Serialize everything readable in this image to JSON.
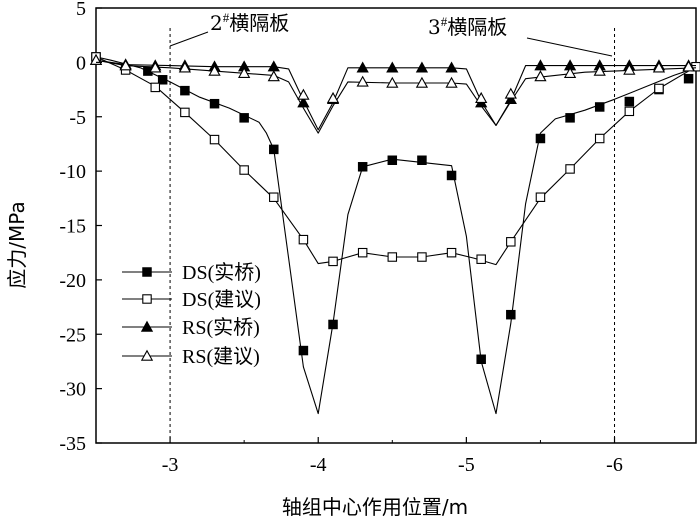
{
  "chart_data": {
    "type": "line",
    "xlabel": "轴组中心作用位置/m",
    "ylabel": "应力/MPa",
    "xlim": [
      -2.5,
      -6.55
    ],
    "ylim": [
      -35,
      5
    ],
    "xticks": [
      {
        "value": -3,
        "label": "-3"
      },
      {
        "value": -4,
        "label": "-4"
      },
      {
        "value": -5,
        "label": "-5"
      },
      {
        "value": -6,
        "label": "-6"
      }
    ],
    "yticks": [
      {
        "value": 5,
        "label": "5"
      },
      {
        "value": 0,
        "label": "0"
      },
      {
        "value": -5,
        "label": "-5"
      },
      {
        "value": -10,
        "label": "-10"
      },
      {
        "value": -15,
        "label": "-15"
      },
      {
        "value": -20,
        "label": "-20"
      },
      {
        "value": -25,
        "label": "-25"
      },
      {
        "value": -30,
        "label": "-30"
      },
      {
        "value": -35,
        "label": "-35"
      }
    ],
    "grid": false,
    "legend_position": "left-bottom",
    "series": [
      {
        "name": "DS(实桥)",
        "marker": "square-filled",
        "curve": [
          [
            -2.5,
            0.5
          ],
          [
            -2.6,
            0.2
          ],
          [
            -2.8,
            -0.5
          ],
          [
            -3.0,
            -1.8
          ],
          [
            -3.2,
            -3.2
          ],
          [
            -3.4,
            -4.2
          ],
          [
            -3.6,
            -5.5
          ],
          [
            -3.65,
            -6.5
          ],
          [
            -3.7,
            -8
          ],
          [
            -3.8,
            -18
          ],
          [
            -3.9,
            -28
          ],
          [
            -4.0,
            -32.3
          ],
          [
            -4.1,
            -24
          ],
          [
            -4.2,
            -14
          ],
          [
            -4.3,
            -9.6
          ],
          [
            -4.5,
            -8.9
          ],
          [
            -4.9,
            -9.5
          ],
          [
            -5.0,
            -16
          ],
          [
            -5.1,
            -27.5
          ],
          [
            -5.2,
            -32.3
          ],
          [
            -5.3,
            -24
          ],
          [
            -5.4,
            -13
          ],
          [
            -5.5,
            -6.5
          ],
          [
            -5.6,
            -5.2
          ],
          [
            -5.8,
            -4.4
          ],
          [
            -6.0,
            -3.4
          ],
          [
            -6.2,
            -2.3
          ],
          [
            -6.4,
            -1.2
          ],
          [
            -6.55,
            -0.5
          ]
        ],
        "markers": [
          [
            -2.5,
            0.5
          ],
          [
            -2.85,
            -0.8
          ],
          [
            -2.95,
            -1.6
          ],
          [
            -3.1,
            -2.6
          ],
          [
            -3.3,
            -3.8
          ],
          [
            -3.5,
            -5.1
          ],
          [
            -3.7,
            -8.0
          ],
          [
            -3.9,
            -26.5
          ],
          [
            -4.1,
            -24.1
          ],
          [
            -4.3,
            -9.6
          ],
          [
            -4.5,
            -9.0
          ],
          [
            -4.7,
            -9.0
          ],
          [
            -4.9,
            -10.4
          ],
          [
            -5.1,
            -27.3
          ],
          [
            -5.3,
            -23.2
          ],
          [
            -5.5,
            -7.0
          ],
          [
            -5.7,
            -5.1
          ],
          [
            -5.9,
            -4.1
          ],
          [
            -6.1,
            -3.6
          ],
          [
            -6.3,
            -2.5
          ],
          [
            -6.5,
            -1.5
          ]
        ]
      },
      {
        "name": "DS(建议)",
        "marker": "square-open",
        "curve": [
          [
            -2.5,
            0.5
          ],
          [
            -2.7,
            -0.7
          ],
          [
            -2.9,
            -2.2
          ],
          [
            -3.1,
            -4.6
          ],
          [
            -3.3,
            -7.1
          ],
          [
            -3.5,
            -9.9
          ],
          [
            -3.7,
            -12.5
          ],
          [
            -3.9,
            -16.3
          ],
          [
            -4.0,
            -18.5
          ],
          [
            -4.1,
            -18.3
          ],
          [
            -4.3,
            -17.5
          ],
          [
            -4.5,
            -17.9
          ],
          [
            -4.7,
            -17.9
          ],
          [
            -4.9,
            -17.5
          ],
          [
            -5.05,
            -18.0
          ],
          [
            -5.2,
            -18.6
          ],
          [
            -5.3,
            -16.5
          ],
          [
            -5.5,
            -12.5
          ],
          [
            -5.7,
            -9.8
          ],
          [
            -5.9,
            -7.0
          ],
          [
            -6.1,
            -4.5
          ],
          [
            -6.3,
            -2.4
          ],
          [
            -6.55,
            -0.4
          ]
        ],
        "markers": [
          [
            -2.5,
            0.5
          ],
          [
            -2.7,
            -0.7
          ],
          [
            -2.9,
            -2.3
          ],
          [
            -3.1,
            -4.6
          ],
          [
            -3.3,
            -7.1
          ],
          [
            -3.5,
            -9.9
          ],
          [
            -3.7,
            -12.4
          ],
          [
            -3.9,
            -16.3
          ],
          [
            -4.1,
            -18.3
          ],
          [
            -4.3,
            -17.5
          ],
          [
            -4.5,
            -17.9
          ],
          [
            -4.7,
            -17.9
          ],
          [
            -4.9,
            -17.5
          ],
          [
            -5.1,
            -18.1
          ],
          [
            -5.3,
            -16.5
          ],
          [
            -5.5,
            -12.4
          ],
          [
            -5.7,
            -9.8
          ],
          [
            -5.9,
            -7.0
          ],
          [
            -6.1,
            -4.5
          ],
          [
            -6.3,
            -2.4
          ],
          [
            -6.55,
            -0.4
          ]
        ]
      },
      {
        "name": "RS(实桥)",
        "marker": "triangle-filled",
        "curve": [
          [
            -2.5,
            0.2
          ],
          [
            -2.7,
            -0.2
          ],
          [
            -3.0,
            -0.3
          ],
          [
            -3.3,
            -0.4
          ],
          [
            -3.7,
            -0.4
          ],
          [
            -3.8,
            -0.6
          ],
          [
            -3.9,
            -3.5
          ],
          [
            -4.0,
            -6.2
          ],
          [
            -4.1,
            -3.7
          ],
          [
            -4.2,
            -0.5
          ],
          [
            -4.5,
            -0.5
          ],
          [
            -4.9,
            -0.5
          ],
          [
            -5.0,
            -0.6
          ],
          [
            -5.1,
            -3.6
          ],
          [
            -5.2,
            -5.8
          ],
          [
            -5.3,
            -3.5
          ],
          [
            -5.4,
            -0.3
          ],
          [
            -5.8,
            -0.3
          ],
          [
            -6.55,
            -0.3
          ]
        ],
        "markers": [
          [
            -2.5,
            0.2
          ],
          [
            -2.7,
            -0.2
          ],
          [
            -2.9,
            -0.3
          ],
          [
            -3.1,
            -0.3
          ],
          [
            -3.3,
            -0.4
          ],
          [
            -3.5,
            -0.4
          ],
          [
            -3.7,
            -0.4
          ],
          [
            -3.9,
            -3.7
          ],
          [
            -4.1,
            -3.4
          ],
          [
            -4.3,
            -0.5
          ],
          [
            -4.5,
            -0.5
          ],
          [
            -4.7,
            -0.5
          ],
          [
            -4.9,
            -0.5
          ],
          [
            -5.1,
            -3.7
          ],
          [
            -5.3,
            -3.4
          ],
          [
            -5.5,
            -0.3
          ],
          [
            -5.7,
            -0.3
          ],
          [
            -5.9,
            -0.3
          ],
          [
            -6.1,
            -0.3
          ],
          [
            -6.3,
            -0.3
          ],
          [
            -6.5,
            -0.3
          ]
        ]
      },
      {
        "name": "RS(建议)",
        "marker": "triangle-open",
        "curve": [
          [
            -2.5,
            0.2
          ],
          [
            -2.7,
            -0.3
          ],
          [
            -3.0,
            -0.5
          ],
          [
            -3.3,
            -0.8
          ],
          [
            -3.7,
            -1.2
          ],
          [
            -3.8,
            -1.8
          ],
          [
            -3.9,
            -4.2
          ],
          [
            -4.0,
            -6.5
          ],
          [
            -4.1,
            -4.0
          ],
          [
            -4.2,
            -1.8
          ],
          [
            -4.5,
            -1.9
          ],
          [
            -4.9,
            -1.9
          ],
          [
            -5.0,
            -2.0
          ],
          [
            -5.1,
            -4.0
          ],
          [
            -5.2,
            -5.8
          ],
          [
            -5.3,
            -3.6
          ],
          [
            -5.4,
            -1.5
          ],
          [
            -5.8,
            -0.9
          ],
          [
            -6.55,
            -0.5
          ]
        ],
        "markers": [
          [
            -2.5,
            0.2
          ],
          [
            -2.7,
            -0.3
          ],
          [
            -2.9,
            -0.5
          ],
          [
            -3.1,
            -0.5
          ],
          [
            -3.3,
            -0.8
          ],
          [
            -3.5,
            -1.0
          ],
          [
            -3.7,
            -1.3
          ],
          [
            -3.9,
            -3.0
          ],
          [
            -4.1,
            -3.3
          ],
          [
            -4.3,
            -1.8
          ],
          [
            -4.5,
            -1.9
          ],
          [
            -4.7,
            -1.9
          ],
          [
            -4.9,
            -1.9
          ],
          [
            -5.1,
            -3.3
          ],
          [
            -5.3,
            -2.9
          ],
          [
            -5.5,
            -1.3
          ],
          [
            -5.7,
            -1.0
          ],
          [
            -5.9,
            -0.8
          ],
          [
            -6.1,
            -0.7
          ],
          [
            -6.3,
            -0.5
          ],
          [
            -6.5,
            -0.4
          ]
        ]
      }
    ],
    "reference_lines": [
      {
        "x": -3,
        "style": "dashed"
      },
      {
        "x": -6,
        "style": "dashed"
      }
    ],
    "annotations": [
      {
        "number": "2",
        "sup": "#",
        "text": "横隔板",
        "points_to_x": -3
      },
      {
        "number": "3",
        "sup": "#",
        "text": "横隔板",
        "points_to_x": -6
      }
    ]
  }
}
